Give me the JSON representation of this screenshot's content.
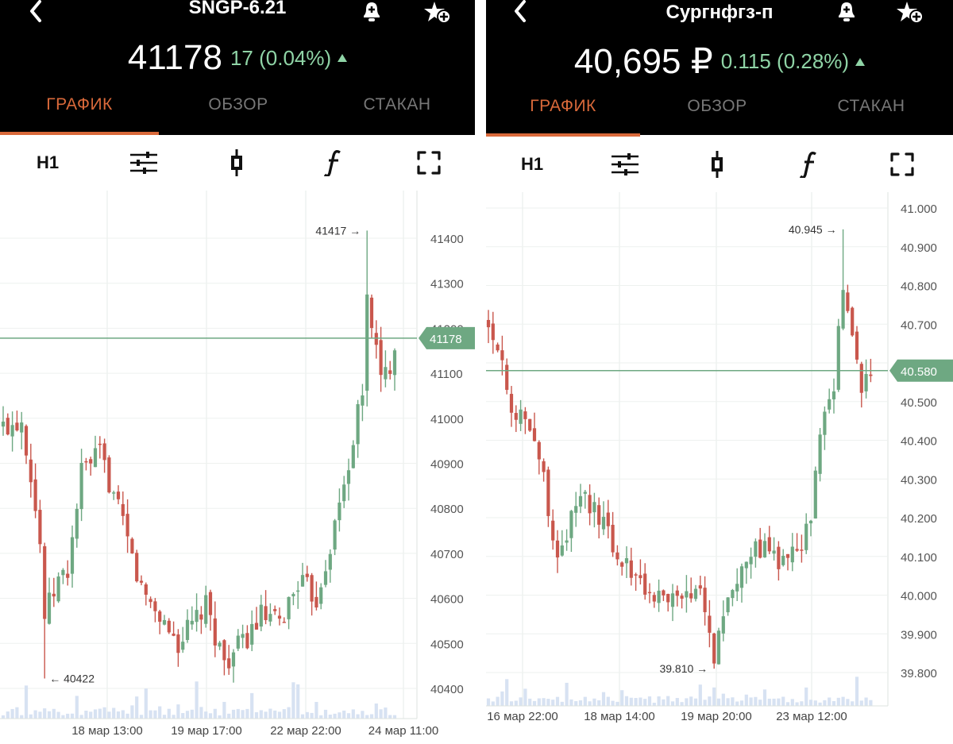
{
  "left_panel": {
    "title": "SNGP-6.21",
    "price": "41178",
    "change": "17 (0.04%)",
    "tabs": [
      "ГРАФИК",
      "ОБЗОР",
      "СТАКАН"
    ],
    "active_tab": "ГРАФИК",
    "timeframe": "H1",
    "icons": [
      "back-arrow-icon",
      "bell-plus-icon",
      "star-plus-icon",
      "settings-sliders-icon",
      "candlestick-icon",
      "function-icon",
      "fullscreen-icon"
    ],
    "chart_data": {
      "type": "candlestick",
      "y_ticks": [
        "41400",
        "41300",
        "41200",
        "41100",
        "41000",
        "40900",
        "40800",
        "40700",
        "40600",
        "40500",
        "40400"
      ],
      "y_range": [
        40400,
        41400
      ],
      "x_ticks": [
        "18 мар 13:00",
        "19 мар 17:00",
        "22 мар 22:00",
        "24 мар 11:00"
      ],
      "current_price_label": "41178",
      "current_price": 41178,
      "max_label": "41417",
      "max": 41417,
      "min_label": "40422",
      "min": 40422,
      "candle_color_up": "#6ea882",
      "candle_color_down": "#c9574d"
    }
  },
  "right_panel": {
    "title": "Сургнфгз-п",
    "price": "40,695 ₽",
    "change": "0.115 (0.28%)",
    "tabs": [
      "ГРАФИК",
      "ОБЗОР",
      "СТАКАН"
    ],
    "active_tab": "ГРАФИК",
    "timeframe": "H1",
    "icons": [
      "back-arrow-icon",
      "bell-plus-icon",
      "star-plus-icon",
      "settings-sliders-icon",
      "candlestick-icon",
      "function-icon",
      "fullscreen-icon"
    ],
    "chart_data": {
      "type": "candlestick",
      "y_ticks": [
        "41.000",
        "40.900",
        "40.800",
        "40.700",
        "40.600",
        "40.500",
        "40.400",
        "40.300",
        "40.200",
        "40.100",
        "40.000",
        "39.900",
        "39.800"
      ],
      "y_range": [
        39.8,
        41.0
      ],
      "x_ticks": [
        "16 мар 22:00",
        "18 мар 14:00",
        "19 мар 20:00",
        "23 мар 12:00"
      ],
      "current_price_label": "40.580",
      "current_price": 40.58,
      "max_label": "40.945",
      "max": 40.945,
      "min_label": "39.810",
      "min": 39.81,
      "candle_color_up": "#6ea882",
      "candle_color_down": "#c9574d"
    }
  }
}
